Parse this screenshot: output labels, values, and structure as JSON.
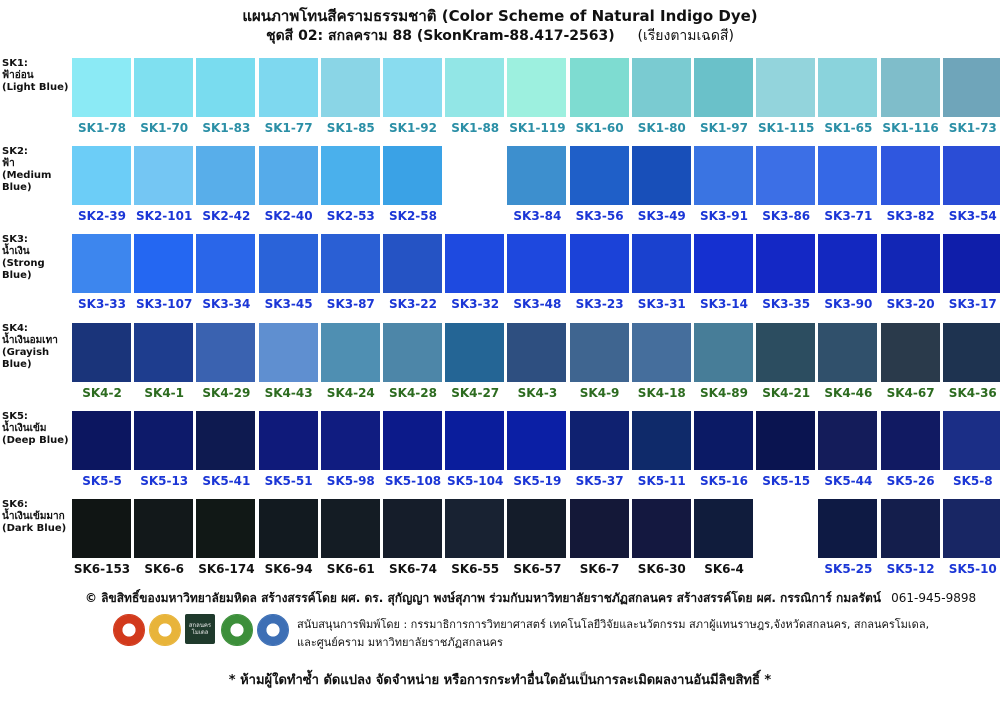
{
  "header": {
    "title": "แผนภาพโทนสีครามธรรมชาติ (Color Scheme of Natural Indigo Dye)",
    "subtitle": "ชุดสี 02: สกลคราม 88 (SkonKram-88.417-2563)",
    "subtitle_note": "(เรียงตามเฉดสี)"
  },
  "rows": [
    {
      "label": "SK1:\nฟ้าอ่อน\n(Light Blue)",
      "label_color": "#2b8fa6",
      "swatches": [
        {
          "code": "SK1-78",
          "color": "#8beaf5"
        },
        {
          "code": "SK1-70",
          "color": "#7fe0f0"
        },
        {
          "code": "SK1-83",
          "color": "#79dcef"
        },
        {
          "code": "SK1-77",
          "color": "#7ed8ef"
        },
        {
          "code": "SK1-85",
          "color": "#8ad5e6"
        },
        {
          "code": "SK1-92",
          "color": "#89dcef"
        },
        {
          "code": "SK1-88",
          "color": "#92e6e6"
        },
        {
          "code": "SK1-119",
          "color": "#9df0df"
        },
        {
          "code": "SK1-60",
          "color": "#7edcd1"
        },
        {
          "code": "SK1-80",
          "color": "#7acbd1"
        },
        {
          "code": "SK1-97",
          "color": "#6ac1c9"
        },
        {
          "code": "SK1-115",
          "color": "#93d4dc"
        },
        {
          "code": "SK1-65",
          "color": "#8ad3dc"
        },
        {
          "code": "SK1-116",
          "color": "#7fbdca"
        },
        {
          "code": "SK1-73",
          "color": "#6fa5ba"
        }
      ]
    },
    {
      "label": "SK2:\nฟ้า\n(Medium\nBlue)",
      "label_color": "#1b36d6",
      "swatches": [
        {
          "code": "SK2-39",
          "color": "#6ccdf7",
          "lc": "blue"
        },
        {
          "code": "SK2-101",
          "color": "#74c6f3",
          "lc": "blue"
        },
        {
          "code": "SK2-42",
          "color": "#58aeea",
          "lc": "blue"
        },
        {
          "code": "SK2-40",
          "color": "#55abea",
          "lc": "blue"
        },
        {
          "code": "SK2-53",
          "color": "#4ab0ec",
          "lc": "blue"
        },
        {
          "code": "SK2-58",
          "color": "#3aa2e6",
          "lc": "blue"
        },
        {
          "code": "",
          "color": "#ffffff",
          "lc": "blue"
        },
        {
          "code": "SK3-84",
          "color": "#3d8fce",
          "lc": "blue"
        },
        {
          "code": "SK3-56",
          "color": "#1f5fc8",
          "lc": "blue"
        },
        {
          "code": "SK3-49",
          "color": "#184fb9",
          "lc": "blue"
        },
        {
          "code": "SK3-91",
          "color": "#3a74e2",
          "lc": "blue"
        },
        {
          "code": "SK3-86",
          "color": "#3c6fe6",
          "lc": "blue"
        },
        {
          "code": "SK3-71",
          "color": "#3568e6",
          "lc": "blue"
        },
        {
          "code": "SK3-82",
          "color": "#2f57df",
          "lc": "blue"
        },
        {
          "code": "SK3-54",
          "color": "#2a4dd6",
          "lc": "blue"
        }
      ]
    },
    {
      "label": "SK3:\nน้ำเงิน\n(Strong Blue)",
      "label_color": "#1b36d6",
      "swatches": [
        {
          "code": "SK3-33",
          "color": "#3d86ee",
          "lc": "blue"
        },
        {
          "code": "SK3-107",
          "color": "#2467f2",
          "lc": "blue"
        },
        {
          "code": "SK3-34",
          "color": "#2a66e9",
          "lc": "blue"
        },
        {
          "code": "SK3-45",
          "color": "#2a63d9",
          "lc": "blue"
        },
        {
          "code": "SK3-87",
          "color": "#2a5fd4",
          "lc": "blue"
        },
        {
          "code": "SK3-22",
          "color": "#2553c4",
          "lc": "blue"
        },
        {
          "code": "SK3-32",
          "color": "#1e4ae0",
          "lc": "blue"
        },
        {
          "code": "SK3-48",
          "color": "#1e48de",
          "lc": "blue"
        },
        {
          "code": "SK3-23",
          "color": "#1b42d8",
          "lc": "blue"
        },
        {
          "code": "SK3-31",
          "color": "#1a41cf",
          "lc": "blue"
        },
        {
          "code": "SK3-14",
          "color": "#1530d0",
          "lc": "blue"
        },
        {
          "code": "SK3-35",
          "color": "#1428c5",
          "lc": "blue"
        },
        {
          "code": "SK3-90",
          "color": "#1328c0",
          "lc": "blue"
        },
        {
          "code": "SK3-20",
          "color": "#1226b5",
          "lc": "blue"
        },
        {
          "code": "SK3-17",
          "color": "#0f1eaa",
          "lc": "blue"
        }
      ]
    },
    {
      "label": "SK4:\nน้ำเงินอมเทา\n(Grayish\nBlue)",
      "label_color": "#1b36d6",
      "swatches": [
        {
          "code": "SK4-2",
          "color": "#1a347a",
          "lc": "green"
        },
        {
          "code": "SK4-1",
          "color": "#1e3d8e",
          "lc": "green"
        },
        {
          "code": "SK4-29",
          "color": "#3a62b0",
          "lc": "green"
        },
        {
          "code": "SK4-43",
          "color": "#5f8fd0",
          "lc": "green"
        },
        {
          "code": "SK4-24",
          "color": "#4f8fb2",
          "lc": "green"
        },
        {
          "code": "SK4-28",
          "color": "#4d86a8",
          "lc": "green"
        },
        {
          "code": "SK4-27",
          "color": "#246595",
          "lc": "green"
        },
        {
          "code": "SK4-3",
          "color": "#2e4f80",
          "lc": "green"
        },
        {
          "code": "SK4-9",
          "color": "#3f6590",
          "lc": "green"
        },
        {
          "code": "SK4-18",
          "color": "#456e9c",
          "lc": "green"
        },
        {
          "code": "SK4-89",
          "color": "#477d98",
          "lc": "green"
        },
        {
          "code": "SK4-21",
          "color": "#2c4d60",
          "lc": "green"
        },
        {
          "code": "SK4-46",
          "color": "#30506b",
          "lc": "green"
        },
        {
          "code": "SK4-67",
          "color": "#2a3a4b",
          "lc": "green"
        },
        {
          "code": "SK4-36",
          "color": "#1e3350",
          "lc": "green"
        }
      ]
    },
    {
      "label": "SK5:\nน้ำเงินเข้ม\n(Deep Blue)",
      "label_color": "#1b36d6",
      "swatches": [
        {
          "code": "SK5-5",
          "color": "#0c1660",
          "lc": "blue"
        },
        {
          "code": "SK5-13",
          "color": "#0d1a6a",
          "lc": "blue"
        },
        {
          "code": "SK5-41",
          "color": "#0e1a50",
          "lc": "blue"
        },
        {
          "code": "SK5-51",
          "color": "#0f1a7a",
          "lc": "blue"
        },
        {
          "code": "SK5-98",
          "color": "#101c80",
          "lc": "blue"
        },
        {
          "code": "SK5-108",
          "color": "#0c1a8a",
          "lc": "blue"
        },
        {
          "code": "SK5-104",
          "color": "#0a1d9c",
          "lc": "blue"
        },
        {
          "code": "SK5-19",
          "color": "#0b1fa5",
          "lc": "blue"
        },
        {
          "code": "SK5-37",
          "color": "#0f2170",
          "lc": "blue"
        },
        {
          "code": "SK5-11",
          "color": "#0f2a6a",
          "lc": "blue"
        },
        {
          "code": "SK5-16",
          "color": "#0b1a65",
          "lc": "blue"
        },
        {
          "code": "SK5-15",
          "color": "#0a1450",
          "lc": "blue"
        },
        {
          "code": "SK5-44",
          "color": "#141c5a",
          "lc": "blue"
        },
        {
          "code": "SK5-26",
          "color": "#111a62",
          "lc": "blue"
        },
        {
          "code": "SK5-8",
          "color": "#1b2e86",
          "lc": "blue"
        }
      ]
    },
    {
      "label": "SK6:\nน้ำเงินเข้มมาก\n(Dark Blue)",
      "label_color": "#1b36d6",
      "swatches": [
        {
          "code": "SK6-153",
          "color": "#101514",
          "lc": "black"
        },
        {
          "code": "SK6-6",
          "color": "#12181a",
          "lc": "black"
        },
        {
          "code": "SK6-174",
          "color": "#111816",
          "lc": "black"
        },
        {
          "code": "SK6-94",
          "color": "#121a20",
          "lc": "black"
        },
        {
          "code": "SK6-61",
          "color": "#141c24",
          "lc": "black"
        },
        {
          "code": "SK6-74",
          "color": "#151d2a",
          "lc": "black"
        },
        {
          "code": "SK6-55",
          "color": "#182232",
          "lc": "black"
        },
        {
          "code": "SK6-57",
          "color": "#141c2a",
          "lc": "black"
        },
        {
          "code": "SK6-7",
          "color": "#141838",
          "lc": "black"
        },
        {
          "code": "SK6-30",
          "color": "#141840",
          "lc": "black"
        },
        {
          "code": "SK6-4",
          "color": "#101c3c",
          "lc": "black"
        },
        {
          "code": "",
          "color": "#ffffff",
          "lc": "black"
        },
        {
          "code": "SK5-25",
          "color": "#0e1a44",
          "lc": "blue"
        },
        {
          "code": "SK5-12",
          "color": "#141e4c",
          "lc": "blue"
        },
        {
          "code": "SK5-10",
          "color": "#182664",
          "lc": "blue"
        }
      ]
    }
  ],
  "footer": {
    "copyright": "© ลิขสิทธิ์ของมหาวิทยาลัยมหิดล สร้างสรรค์โดย ผศ. ดร. สุกัญญา พงษ์สุภาพ ร่วมกับมหาวิทยาลัยราชภัฏสกลนคร สร้างสรรค์โดย ผศ. กรรณิการ์ กมลรัตน์",
    "phone": "061-945-9898",
    "support_line1": "สนับสนุนการพิมพ์โดย :  กรรมาธิการการวิทยาศาสตร์ เทคโนโลยีวิจัยและนวัตกรรม สภาผู้แทนราษฎร,จังหวัดสกลนคร, สกลนครโมเดล,",
    "support_line2": "และศูนย์คราม มหาวิทยาลัยราชภัฏสกลนคร",
    "warning": "* ห้ามผู้ใดทำซ้ำ ดัดแปลง จัดจำหน่าย หรือการกระทำอื่นใดอันเป็นการละเมิดผลงานอันมีลิขสิทธิ์ *",
    "logos": [
      {
        "name": "parliament-seal-icon",
        "color": "#d23a1c"
      },
      {
        "name": "gold-seal-icon",
        "color": "#e8b43a"
      },
      {
        "name": "sakon-model-logo",
        "color": "#1f3a2c",
        "text": "สกลนคร\nโมเดล"
      },
      {
        "name": "green-seal-icon",
        "color": "#3c8f3a"
      },
      {
        "name": "university-seal-icon",
        "color": "#3d6fb5"
      }
    ]
  }
}
